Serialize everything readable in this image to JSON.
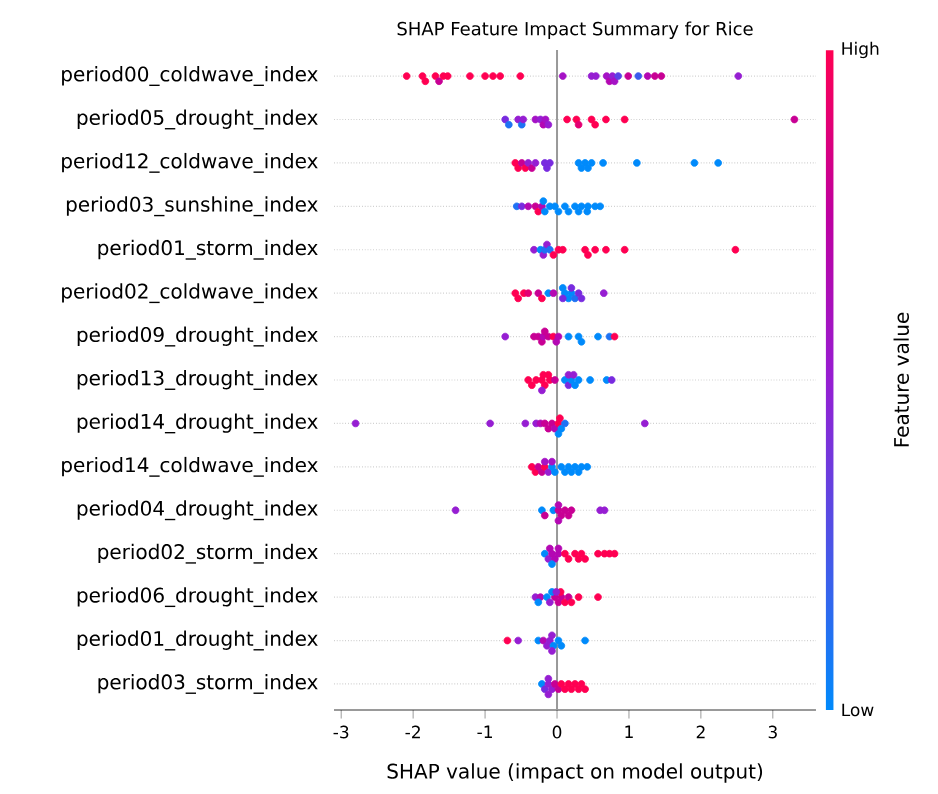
{
  "chart_data": {
    "type": "scatter",
    "orientation": "horizontal",
    "title": "SHAP Feature Impact Summary for Rice",
    "xlabel": "SHAP value (impact on model output)",
    "clabel": "Feature value",
    "categories": [
      "period00_coldwave_index",
      "period05_drought_index",
      "period12_coldwave_index",
      "period03_sunshine_index",
      "period01_storm_index",
      "period02_coldwave_index",
      "period09_drought_index",
      "period13_drought_index",
      "period14_drought_index",
      "period14_coldwave_index",
      "period04_drought_index",
      "period02_storm_index",
      "period06_drought_index",
      "period01_drought_index",
      "period03_storm_index"
    ],
    "series": [
      {
        "x": [
          "period00_coldwave_index",
          "period00_coldwave_index",
          "period00_coldwave_index",
          "period00_coldwave_index",
          "period00_coldwave_index",
          "period00_coldwave_index",
          "period00_coldwave_index",
          "period00_coldwave_index",
          "period00_coldwave_index",
          "period00_coldwave_index",
          "period00_coldwave_index",
          "period00_coldwave_index",
          "period00_coldwave_index",
          "period00_coldwave_index",
          "period00_coldwave_index",
          "period00_coldwave_index",
          "period00_coldwave_index",
          "period00_coldwave_index",
          "period00_coldwave_index",
          "period00_coldwave_index",
          "period00_coldwave_index",
          "period00_coldwave_index",
          "period00_coldwave_index",
          "period00_coldwave_index",
          "period00_coldwave_index",
          "period00_coldwave_index"
        ],
        "values": [
          -2.09,
          -1.87,
          -1.83,
          -1.69,
          -1.64,
          -1.58,
          -1.52,
          -1.21,
          -1.0,
          -0.89,
          -0.79,
          -0.51,
          0.08,
          0.48,
          0.54,
          0.69,
          0.73,
          0.77,
          0.8,
          0.85,
          0.99,
          1.13,
          1.26,
          1.36,
          1.45,
          2.52
        ],
        "colors": [
          "#ff0052",
          "#ff0052",
          "#ff0052",
          "#ff0052",
          "#c80094",
          "#ff0052",
          "#ff0052",
          "#ff0052",
          "#ff0052",
          "#ff0052",
          "#ff0052",
          "#ff0052",
          "#a512c5",
          "#961ed2",
          "#961ed2",
          "#a512c5",
          "#b408b3",
          "#961ed2",
          "#a512c5",
          "#5a43e6",
          "#c80094",
          "#3c5aed",
          "#b408b3",
          "#c80094",
          "#c80094",
          "#961ed2"
        ]
      },
      {
        "x": [
          "period05_drought_index",
          "period05_drought_index",
          "period05_drought_index",
          "period05_drought_index",
          "period05_drought_index",
          "period05_drought_index",
          "period05_drought_index",
          "period05_drought_index",
          "period05_drought_index",
          "period05_drought_index",
          "period05_drought_index",
          "period05_drought_index",
          "period05_drought_index",
          "period05_drought_index",
          "period05_drought_index",
          "period05_drought_index",
          "period05_drought_index",
          "period05_drought_index"
        ],
        "values": [
          -0.72,
          -0.67,
          -0.54,
          -0.49,
          -0.47,
          -0.3,
          -0.23,
          -0.19,
          -0.16,
          -0.12,
          0.14,
          0.27,
          0.3,
          0.48,
          0.53,
          0.68,
          0.94,
          3.3
        ],
        "colors": [
          "#782bdf",
          "#1e72f4",
          "#961ed2",
          "#1e72f4",
          "#961ed2",
          "#a512c5",
          "#961ed2",
          "#b408b3",
          "#a512c5",
          "#961ed2",
          "#ff0052",
          "#ff0052",
          "#e30073",
          "#ff0052",
          "#ff0052",
          "#ff0052",
          "#ff0052",
          "#c80094"
        ]
      },
      {
        "x": [
          "period12_coldwave_index",
          "period12_coldwave_index",
          "period12_coldwave_index",
          "period12_coldwave_index",
          "period12_coldwave_index",
          "period12_coldwave_index",
          "period12_coldwave_index",
          "period12_coldwave_index",
          "period12_coldwave_index",
          "period12_coldwave_index",
          "period12_coldwave_index",
          "period12_coldwave_index",
          "period12_coldwave_index",
          "period12_coldwave_index",
          "period12_coldwave_index",
          "period12_coldwave_index",
          "period12_coldwave_index",
          "period12_coldwave_index",
          "period12_coldwave_index"
        ],
        "values": [
          -0.58,
          -0.54,
          -0.49,
          -0.44,
          -0.4,
          -0.35,
          -0.3,
          -0.17,
          -0.14,
          -0.1,
          0.3,
          0.34,
          0.39,
          0.43,
          0.48,
          0.64,
          1.11,
          1.91,
          2.24
        ],
        "colors": [
          "#ff0052",
          "#ff0052",
          "#c80094",
          "#ff0052",
          "#961ed2",
          "#c80094",
          "#961ed2",
          "#782bdf",
          "#782bdf",
          "#782bdf",
          "#008afb",
          "#008afb",
          "#008afb",
          "#008afb",
          "#008afb",
          "#008afb",
          "#008afb",
          "#008afb",
          "#008afb"
        ]
      },
      {
        "x": [
          "period03_sunshine_index",
          "period03_sunshine_index",
          "period03_sunshine_index",
          "period03_sunshine_index",
          "period03_sunshine_index",
          "period03_sunshine_index",
          "period03_sunshine_index",
          "period03_sunshine_index",
          "period03_sunshine_index",
          "period03_sunshine_index",
          "period03_sunshine_index",
          "period03_sunshine_index",
          "period03_sunshine_index",
          "period03_sunshine_index",
          "period03_sunshine_index",
          "period03_sunshine_index",
          "period03_sunshine_index",
          "period03_sunshine_index",
          "period03_sunshine_index",
          "period03_sunshine_index"
        ],
        "values": [
          -0.56,
          -0.49,
          -0.4,
          -0.3,
          -0.26,
          -0.21,
          -0.17,
          -0.1,
          -0.03,
          0.02,
          0.11,
          0.16,
          0.25,
          0.34,
          0.43,
          0.53,
          0.6,
          -0.19,
          0.3,
          0.42
        ],
        "colors": [
          "#1e72f4",
          "#782bdf",
          "#b408b3",
          "#c80094",
          "#ff0052",
          "#b408b3",
          "#008afb",
          "#008afb",
          "#008afb",
          "#008afb",
          "#008afb",
          "#008afb",
          "#008afb",
          "#008afb",
          "#008afb",
          "#008afb",
          "#008afb",
          "#008afb",
          "#008afb",
          "#008afb"
        ]
      },
      {
        "x": [
          "period01_storm_index",
          "period01_storm_index",
          "period01_storm_index",
          "period01_storm_index",
          "period01_storm_index",
          "period01_storm_index",
          "period01_storm_index",
          "period01_storm_index",
          "period01_storm_index",
          "period01_storm_index",
          "period01_storm_index",
          "period01_storm_index",
          "period01_storm_index",
          "period01_storm_index",
          "period01_storm_index"
        ],
        "values": [
          -0.32,
          -0.23,
          -0.19,
          -0.17,
          -0.14,
          -0.1,
          -0.05,
          0.02,
          0.08,
          0.39,
          0.43,
          0.53,
          0.68,
          0.94,
          2.48
        ],
        "colors": [
          "#961ed2",
          "#008afb",
          "#961ed2",
          "#1e72f4",
          "#961ed2",
          "#1e72f4",
          "#ff0052",
          "#ff0052",
          "#ff0052",
          "#ff0052",
          "#ff0052",
          "#ff0052",
          "#ff0052",
          "#ff0052",
          "#ff0052"
        ]
      },
      {
        "x": [
          "period02_coldwave_index",
          "period02_coldwave_index",
          "period02_coldwave_index",
          "period02_coldwave_index",
          "period02_coldwave_index",
          "period02_coldwave_index",
          "period02_coldwave_index",
          "period02_coldwave_index",
          "period02_coldwave_index",
          "period02_coldwave_index",
          "period02_coldwave_index",
          "period02_coldwave_index",
          "period02_coldwave_index",
          "period02_coldwave_index",
          "period02_coldwave_index",
          "period02_coldwave_index",
          "period02_coldwave_index",
          "period02_coldwave_index"
        ],
        "values": [
          -0.58,
          -0.54,
          -0.46,
          -0.4,
          -0.26,
          -0.21,
          -0.12,
          -0.05,
          0.11,
          0.16,
          0.2,
          0.25,
          0.3,
          0.34,
          0.65,
          0.08,
          0.2,
          0.08
        ],
        "colors": [
          "#ff0052",
          "#ff0052",
          "#ff0052",
          "#e30073",
          "#c80094",
          "#ff0052",
          "#008afb",
          "#b408b3",
          "#008afb",
          "#008afb",
          "#008afb",
          "#1e72f4",
          "#782bdf",
          "#782bdf",
          "#961ed2",
          "#782bdf",
          "#782bdf",
          "#008afb"
        ]
      },
      {
        "x": [
          "period09_drought_index",
          "period09_drought_index",
          "period09_drought_index",
          "period09_drought_index",
          "period09_drought_index",
          "period09_drought_index",
          "period09_drought_index",
          "period09_drought_index",
          "period09_drought_index",
          "period09_drought_index",
          "period09_drought_index",
          "period09_drought_index",
          "period09_drought_index",
          "period09_drought_index",
          "period09_drought_index",
          "period09_drought_index"
        ],
        "values": [
          -0.72,
          -0.32,
          -0.26,
          -0.21,
          -0.19,
          -0.17,
          -0.12,
          -0.05,
          -0.01,
          0.02,
          0.16,
          0.3,
          0.34,
          0.57,
          0.73,
          0.8
        ],
        "colors": [
          "#961ed2",
          "#c80094",
          "#c80094",
          "#c80094",
          "#b408b3",
          "#c80094",
          "#c80094",
          "#ff0052",
          "#b408b3",
          "#b408b3",
          "#008afb",
          "#008afb",
          "#008afb",
          "#008afb",
          "#1e72f4",
          "#ff0052"
        ]
      },
      {
        "x": [
          "period13_drought_index",
          "period13_drought_index",
          "period13_drought_index",
          "period13_drought_index",
          "period13_drought_index",
          "period13_drought_index",
          "period13_drought_index",
          "period13_drought_index",
          "period13_drought_index",
          "period13_drought_index",
          "period13_drought_index",
          "period13_drought_index",
          "period13_drought_index",
          "period13_drought_index",
          "period13_drought_index",
          "period13_drought_index",
          "period13_drought_index",
          "period13_drought_index",
          "period13_drought_index",
          "period13_drought_index"
        ],
        "values": [
          -0.4,
          -0.35,
          -0.29,
          -0.21,
          -0.17,
          -0.1,
          -0.03,
          0.11,
          0.16,
          0.2,
          0.25,
          0.3,
          0.46,
          0.69,
          0.76,
          -0.19,
          -0.12,
          0.16,
          0.23,
          -0.21
        ],
        "colors": [
          "#ff0052",
          "#ff0052",
          "#ff0052",
          "#ff0052",
          "#ff0052",
          "#ff0052",
          "#c80094",
          "#008afb",
          "#782bdf",
          "#008afb",
          "#008afb",
          "#008afb",
          "#008afb",
          "#008afb",
          "#782bdf",
          "#ff0052",
          "#ff0052",
          "#961ed2",
          "#961ed2",
          "#961ed2"
        ]
      },
      {
        "x": [
          "period14_drought_index",
          "period14_drought_index",
          "period14_drought_index",
          "period14_drought_index",
          "period14_drought_index",
          "period14_drought_index",
          "period14_drought_index",
          "period14_drought_index",
          "period14_drought_index",
          "period14_drought_index",
          "period14_drought_index",
          "period14_drought_index",
          "period14_drought_index",
          "period14_drought_index",
          "period14_drought_index"
        ],
        "values": [
          -2.8,
          -0.93,
          -0.44,
          -0.29,
          -0.23,
          -0.17,
          -0.12,
          -0.07,
          -0.03,
          0.02,
          0.06,
          0.11,
          0.04,
          0.02,
          1.22
        ],
        "colors": [
          "#961ed2",
          "#961ed2",
          "#961ed2",
          "#961ed2",
          "#b408b3",
          "#c80094",
          "#c80094",
          "#c80094",
          "#b408b3",
          "#ff0052",
          "#008afb",
          "#1e72f4",
          "#ff0052",
          "#008afb",
          "#961ed2"
        ]
      },
      {
        "x": [
          "period14_coldwave_index",
          "period14_coldwave_index",
          "period14_coldwave_index",
          "period14_coldwave_index",
          "period14_coldwave_index",
          "period14_coldwave_index",
          "period14_coldwave_index",
          "period14_coldwave_index",
          "period14_coldwave_index",
          "period14_coldwave_index",
          "period14_coldwave_index",
          "period14_coldwave_index",
          "period14_coldwave_index",
          "period14_coldwave_index",
          "period14_coldwave_index",
          "period14_coldwave_index",
          "period14_coldwave_index",
          "period14_coldwave_index"
        ],
        "values": [
          -0.35,
          -0.3,
          -0.26,
          -0.21,
          -0.17,
          -0.12,
          -0.07,
          -0.03,
          0.06,
          0.11,
          0.16,
          0.2,
          0.25,
          0.3,
          0.34,
          0.42,
          -0.17,
          -0.07
        ],
        "colors": [
          "#ff0052",
          "#ff0052",
          "#c80094",
          "#c80094",
          "#ff0052",
          "#961ed2",
          "#008afb",
          "#008afb",
          "#008afb",
          "#008afb",
          "#008afb",
          "#008afb",
          "#008afb",
          "#008afb",
          "#008afb",
          "#008afb",
          "#a512c5",
          "#a512c5"
        ]
      },
      {
        "x": [
          "period04_drought_index",
          "period04_drought_index",
          "period04_drought_index",
          "period04_drought_index",
          "period04_drought_index",
          "period04_drought_index",
          "period04_drought_index",
          "period04_drought_index",
          "period04_drought_index",
          "period04_drought_index",
          "period04_drought_index",
          "period04_drought_index",
          "period04_drought_index"
        ],
        "values": [
          -1.41,
          -0.21,
          -0.17,
          -0.05,
          0.02,
          0.06,
          0.11,
          0.16,
          0.2,
          0.6,
          0.66,
          0.02,
          0.02
        ],
        "colors": [
          "#961ed2",
          "#008afb",
          "#c80094",
          "#008afb",
          "#c80094",
          "#c80094",
          "#c80094",
          "#c80094",
          "#c80094",
          "#961ed2",
          "#961ed2",
          "#b408b3",
          "#b408b3"
        ]
      },
      {
        "x": [
          "period02_storm_index",
          "period02_storm_index",
          "period02_storm_index",
          "period02_storm_index",
          "period02_storm_index",
          "period02_storm_index",
          "period02_storm_index",
          "period02_storm_index",
          "period02_storm_index",
          "period02_storm_index",
          "period02_storm_index",
          "period02_storm_index",
          "period02_storm_index",
          "period02_storm_index",
          "period02_storm_index",
          "period02_storm_index",
          "period02_storm_index",
          "period02_storm_index"
        ],
        "values": [
          -0.17,
          -0.12,
          -0.07,
          -0.03,
          0.02,
          0.11,
          0.16,
          0.25,
          0.3,
          0.34,
          0.39,
          0.57,
          0.66,
          0.73,
          0.8,
          -0.1,
          0.02,
          -0.07
        ],
        "colors": [
          "#008afb",
          "#961ed2",
          "#b408b3",
          "#b408b3",
          "#b408b3",
          "#ff0052",
          "#ff0052",
          "#ff0052",
          "#ff0052",
          "#ff0052",
          "#ff0052",
          "#ff0052",
          "#ff0052",
          "#ff0052",
          "#ff0052",
          "#b408b3",
          "#b408b3",
          "#008afb"
        ]
      },
      {
        "x": [
          "period06_drought_index",
          "period06_drought_index",
          "period06_drought_index",
          "period06_drought_index",
          "period06_drought_index",
          "period06_drought_index",
          "period06_drought_index",
          "period06_drought_index",
          "period06_drought_index",
          "period06_drought_index",
          "period06_drought_index",
          "period06_drought_index",
          "period06_drought_index",
          "period06_drought_index",
          "period06_drought_index",
          "period06_drought_index"
        ],
        "values": [
          -0.3,
          -0.23,
          -0.14,
          -0.1,
          -0.03,
          0.02,
          0.06,
          0.11,
          0.16,
          0.2,
          0.3,
          0.57,
          -0.26,
          -0.07,
          0.05,
          -0.01
        ],
        "colors": [
          "#961ed2",
          "#b408b3",
          "#008afb",
          "#961ed2",
          "#c80094",
          "#c80094",
          "#c80094",
          "#ff0052",
          "#c80094",
          "#ff0052",
          "#ff0052",
          "#ff0052",
          "#008afb",
          "#008afb",
          "#ff0052",
          "#961ed2"
        ]
      },
      {
        "x": [
          "period01_drought_index",
          "period01_drought_index",
          "period01_drought_index",
          "period01_drought_index",
          "period01_drought_index",
          "period01_drought_index",
          "period01_drought_index",
          "period01_drought_index",
          "period01_drought_index",
          "period01_drought_index",
          "period01_drought_index",
          "period01_drought_index"
        ],
        "values": [
          -0.69,
          -0.54,
          -0.26,
          -0.19,
          -0.14,
          -0.1,
          -0.05,
          0.02,
          0.06,
          0.39,
          -0.07,
          -0.07
        ],
        "colors": [
          "#ff0052",
          "#961ed2",
          "#008afb",
          "#b408b3",
          "#961ed2",
          "#961ed2",
          "#008afb",
          "#008afb",
          "#008afb",
          "#008afb",
          "#961ed2",
          "#961ed2"
        ]
      },
      {
        "x": [
          "period03_storm_index",
          "period03_storm_index",
          "period03_storm_index",
          "period03_storm_index",
          "period03_storm_index",
          "period03_storm_index",
          "period03_storm_index",
          "period03_storm_index",
          "period03_storm_index",
          "period03_storm_index",
          "period03_storm_index",
          "period03_storm_index",
          "period03_storm_index",
          "period03_storm_index",
          "period03_storm_index",
          "period03_storm_index"
        ],
        "values": [
          -0.21,
          -0.17,
          -0.12,
          -0.07,
          -0.03,
          0.02,
          0.06,
          0.11,
          0.16,
          0.2,
          0.25,
          0.3,
          0.34,
          0.39,
          -0.12,
          -0.12
        ],
        "colors": [
          "#008afb",
          "#782bdf",
          "#961ed2",
          "#961ed2",
          "#c80094",
          "#c80094",
          "#ff0052",
          "#ff0052",
          "#ff0052",
          "#ff0052",
          "#ff0052",
          "#ff0052",
          "#ff0052",
          "#ff0052",
          "#961ed2",
          "#961ed2"
        ]
      }
    ],
    "xlim": [
      -3.1,
      3.6
    ],
    "xticks": [
      -3,
      -2,
      -1,
      0,
      1,
      2,
      3
    ],
    "cticks": [
      {
        "label": "Low"
      },
      {
        "label": "High"
      }
    ],
    "grid": "y",
    "ref_lines": [
      {
        "axis": "x",
        "value": 0,
        "color": "#999999"
      }
    ]
  }
}
